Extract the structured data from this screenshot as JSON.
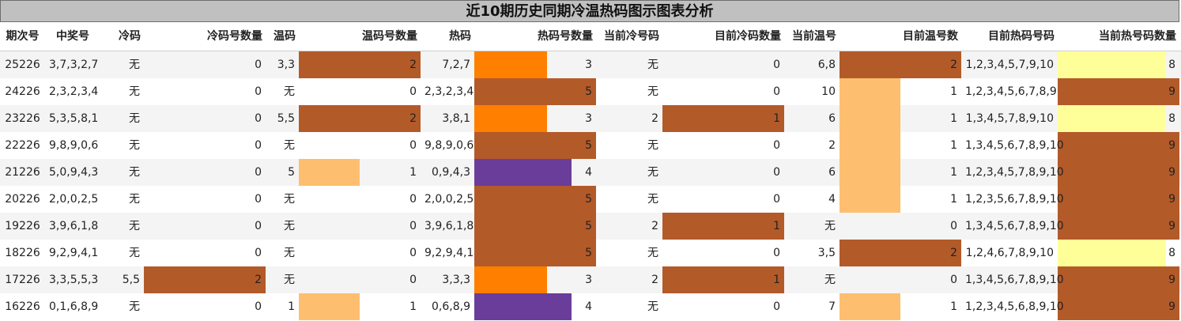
{
  "title": "近10期历史同期冷温热码图示图表分析",
  "headers": [
    "期次号",
    "中奖号",
    "冷码",
    "冷码号数量",
    "温码",
    "温码号数量",
    "热码",
    "热码号数量",
    "当前冷号码",
    "目前冷码数量",
    "当前温号",
    "目前温号数",
    "目前热码号码",
    "当前热号码数量"
  ],
  "colors": {
    "brown": "#b35a29",
    "orange": "#ff7f00",
    "light_orange": "#fdbf6f",
    "purple": "#6a3d9a",
    "yellow": "#ffff99"
  },
  "rows": [
    {
      "period": "25226",
      "numbers": "3,7,3,2,7",
      "cold": "无",
      "cold_count": "0",
      "warm": "3,3",
      "warm_count": "2",
      "hot": "7,2,7",
      "hot_count": "3",
      "cur_cold": "无",
      "cur_cold_count": "0",
      "cur_warm": "6,8",
      "cur_warm_count": "2",
      "cur_hot": "1,2,3,4,5,7,9,10",
      "cur_hot_count": "8"
    },
    {
      "period": "24226",
      "numbers": "2,3,2,3,4",
      "cold": "无",
      "cold_count": "0",
      "warm": "无",
      "warm_count": "0",
      "hot": "2,3,2,3,4",
      "hot_count": "5",
      "cur_cold": "无",
      "cur_cold_count": "0",
      "cur_warm": "10",
      "cur_warm_count": "1",
      "cur_hot": "1,2,3,4,5,6,7,8,9",
      "cur_hot_count": "9"
    },
    {
      "period": "23226",
      "numbers": "5,3,5,8,1",
      "cold": "无",
      "cold_count": "0",
      "warm": "5,5",
      "warm_count": "2",
      "hot": "3,8,1",
      "hot_count": "3",
      "cur_cold": "2",
      "cur_cold_count": "1",
      "cur_warm": "6",
      "cur_warm_count": "1",
      "cur_hot": "1,3,4,5,7,8,9,10",
      "cur_hot_count": "8"
    },
    {
      "period": "22226",
      "numbers": "9,8,9,0,6",
      "cold": "无",
      "cold_count": "0",
      "warm": "无",
      "warm_count": "0",
      "hot": "9,8,9,0,6",
      "hot_count": "5",
      "cur_cold": "无",
      "cur_cold_count": "0",
      "cur_warm": "2",
      "cur_warm_count": "1",
      "cur_hot": "1,3,4,5,6,7,8,9,10",
      "cur_hot_count": "9"
    },
    {
      "period": "21226",
      "numbers": "5,0,9,4,3",
      "cold": "无",
      "cold_count": "0",
      "warm": "5",
      "warm_count": "1",
      "hot": "0,9,4,3",
      "hot_count": "4",
      "cur_cold": "无",
      "cur_cold_count": "0",
      "cur_warm": "6",
      "cur_warm_count": "1",
      "cur_hot": "1,2,3,4,5,7,8,9,10",
      "cur_hot_count": "9"
    },
    {
      "period": "20226",
      "numbers": "2,0,0,2,5",
      "cold": "无",
      "cold_count": "0",
      "warm": "无",
      "warm_count": "0",
      "hot": "2,0,0,2,5",
      "hot_count": "5",
      "cur_cold": "无",
      "cur_cold_count": "0",
      "cur_warm": "4",
      "cur_warm_count": "1",
      "cur_hot": "1,2,3,5,6,7,8,9,10",
      "cur_hot_count": "9"
    },
    {
      "period": "19226",
      "numbers": "3,9,6,1,8",
      "cold": "无",
      "cold_count": "0",
      "warm": "无",
      "warm_count": "0",
      "hot": "3,9,6,1,8",
      "hot_count": "5",
      "cur_cold": "2",
      "cur_cold_count": "1",
      "cur_warm": "无",
      "cur_warm_count": "0",
      "cur_hot": "1,3,4,5,6,7,8,9,10",
      "cur_hot_count": "9"
    },
    {
      "period": "18226",
      "numbers": "9,2,9,4,1",
      "cold": "无",
      "cold_count": "0",
      "warm": "无",
      "warm_count": "0",
      "hot": "9,2,9,4,1",
      "hot_count": "5",
      "cur_cold": "无",
      "cur_cold_count": "0",
      "cur_warm": "3,5",
      "cur_warm_count": "2",
      "cur_hot": "1,2,4,6,7,8,9,10",
      "cur_hot_count": "8"
    },
    {
      "period": "17226",
      "numbers": "3,3,5,5,3",
      "cold": "5,5",
      "cold_count": "2",
      "warm": "无",
      "warm_count": "0",
      "hot": "3,3,3",
      "hot_count": "3",
      "cur_cold": "2",
      "cur_cold_count": "1",
      "cur_warm": "无",
      "cur_warm_count": "0",
      "cur_hot": "1,3,4,5,6,7,8,9,10",
      "cur_hot_count": "9"
    },
    {
      "period": "16226",
      "numbers": "0,1,6,8,9",
      "cold": "无",
      "cold_count": "0",
      "warm": "1",
      "warm_count": "1",
      "hot": "0,6,8,9",
      "hot_count": "4",
      "cur_cold": "无",
      "cur_cold_count": "0",
      "cur_warm": "7",
      "cur_warm_count": "1",
      "cur_hot": "1,2,3,4,5,6,8,9,10",
      "cur_hot_count": "9"
    }
  ]
}
